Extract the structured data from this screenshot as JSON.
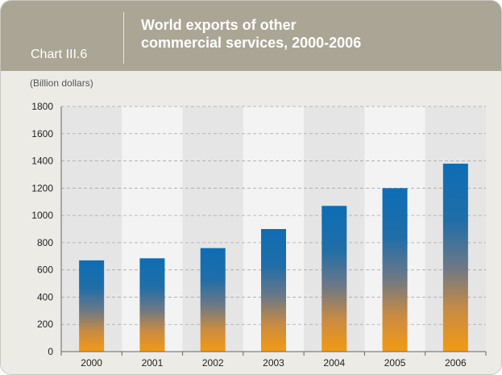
{
  "header": {
    "chart_label": "Chart III.6",
    "title": "World exports of other\ncommercial services, 2000-2006"
  },
  "colors": {
    "header_bg": "#aaa594",
    "bar_top": "#0e6db4",
    "bar_bottom": "#f39a12",
    "grid": "#a8a8a8"
  },
  "chart_data": {
    "type": "bar",
    "unit_label": "(Billion dollars)",
    "categories": [
      "2000",
      "2001",
      "2002",
      "2003",
      "2004",
      "2005",
      "2006"
    ],
    "values": [
      670,
      685,
      760,
      900,
      1070,
      1200,
      1380
    ],
    "ylim": [
      0,
      1800
    ],
    "yticks": [
      0,
      200,
      400,
      600,
      800,
      1000,
      1200,
      1400,
      1600,
      1800
    ],
    "grid": true,
    "legend": "none"
  }
}
